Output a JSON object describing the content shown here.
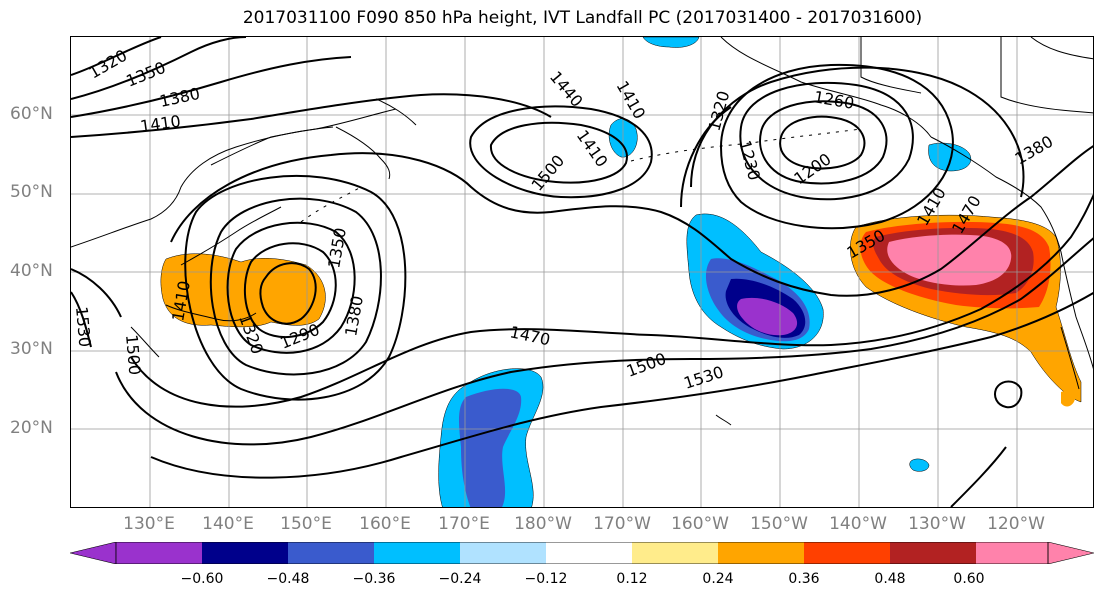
{
  "title": "2017031100 F090 850 hPa height, IVT Landfall PC (2017031400 - 2017031600)",
  "latitude_labels": [
    "60°N",
    "50°N",
    "40°N",
    "30°N",
    "20°N"
  ],
  "longitude_labels": [
    "130°E",
    "140°E",
    "150°E",
    "160°E",
    "170°E",
    "180°W",
    "170°W",
    "160°W",
    "150°W",
    "140°W",
    "130°W",
    "120°W"
  ],
  "contour_labels": [
    "1320",
    "1350",
    "1380",
    "1410",
    "1440",
    "1410",
    "1470",
    "1500",
    "1410",
    "1320",
    "1230",
    "1200",
    "1260",
    "1380",
    "1350",
    "1410",
    "1290",
    "1320",
    "1350",
    "1380",
    "1410",
    "1500",
    "1530",
    "1470",
    "1500",
    "1530"
  ],
  "colorbar": {
    "tick_labels": [
      "−0.60",
      "−0.48",
      "−0.36",
      "−0.24",
      "−0.12",
      "0.12",
      "0.24",
      "0.36",
      "0.48",
      "0.60"
    ],
    "colors": [
      "#9a32cd",
      "#00008b",
      "#3a5bcd",
      "#00bfff",
      "#b0e2ff",
      "#ffffff",
      "#ffec8b",
      "#ffa500",
      "#ff4000",
      "#b22222",
      "#ff82ab"
    ]
  }
}
